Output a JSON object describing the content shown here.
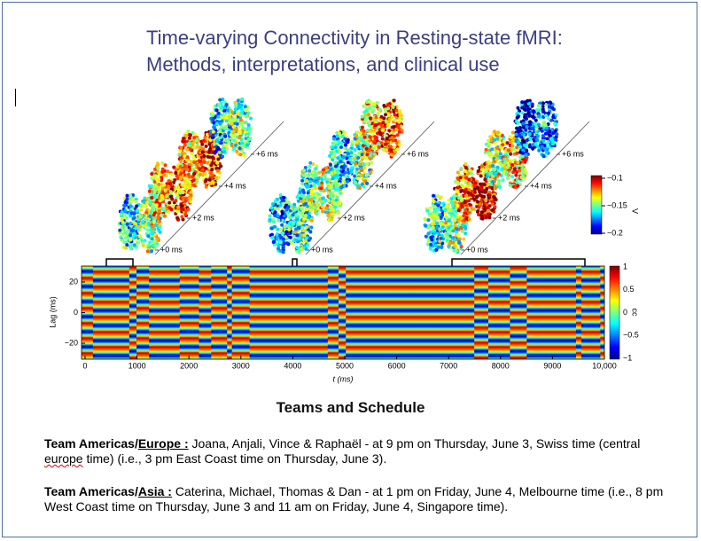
{
  "title": {
    "line1": "Time-varying Connectivity in Resting-state fMRI:",
    "line2": "Methods, interpretations, and clinical use"
  },
  "figure": {
    "panels": [
      {
        "lag_labels": [
          "+0 ms",
          "+2 ms",
          "+4 ms",
          "+6 ms"
        ]
      },
      {
        "lag_labels": [
          "+0 ms",
          "+2 ms",
          "+4 ms",
          "+6 ms"
        ]
      },
      {
        "lag_labels": [
          "+0 ms",
          "+2 ms",
          "+4 ms",
          "+6 ms"
        ]
      }
    ],
    "voltage_colorbar": {
      "label": "V",
      "ticks": [
        "−0.1",
        "−0.15",
        "−0.2"
      ]
    },
    "heatmap": {
      "y_label": "Lag (ms)",
      "y_ticks": [
        "20",
        "0",
        "−20"
      ],
      "x_label": "t (ms)",
      "x_ticks": [
        "0",
        "1000",
        "2000",
        "3000",
        "4000",
        "5000",
        "6000",
        "7000",
        "8000",
        "9000",
        "10,000"
      ],
      "colorbar_label": "cc",
      "colorbar_ticks": [
        "1",
        "0.5",
        "0",
        "−0.5",
        "−1"
      ]
    }
  },
  "heading": "Teams and Schedule",
  "paragraphs": [
    {
      "team": "Team Americas/",
      "region": "Europe :",
      "text_a": " Joana, Anjali, Vince & Raphaël - at 9 pm on Thursday, June 3, Swiss time (central ",
      "misspelled": "europe",
      "text_b": " time) (i.e., 3 pm East Coast time on Thursday, June 3)."
    },
    {
      "team": "Team Americas/",
      "region": "Asia :",
      "text_a": " Caterina, Michael, Thomas & Dan - at 1 pm on Friday, June 4, Melbourne time (i.e., 8 pm West Coast time on Thursday, June 3 and 11 am on Friday, June 4, Singapore time).",
      "misspelled": "",
      "text_b": ""
    }
  ]
}
